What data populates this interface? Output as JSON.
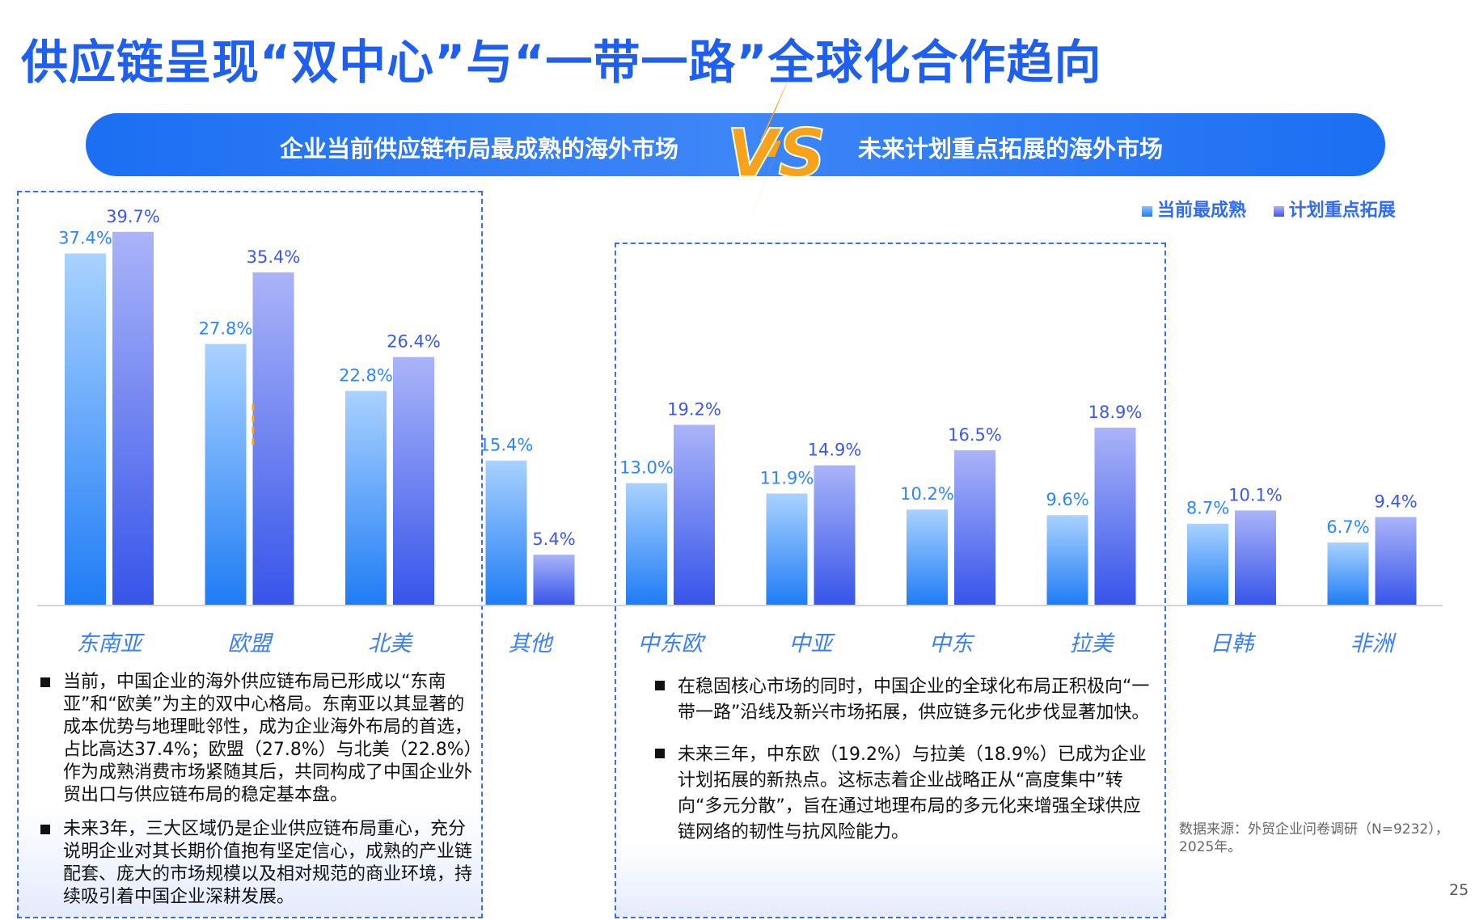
{
  "title": "供应链呈现“双中心”与“一带一路”全球化合作趋向",
  "banner": {
    "left_text": "企业当前供应链布局最成熟的海外市场",
    "vs_text": "VS",
    "right_text": "未来计划重点拓展的海外市场"
  },
  "colors": {
    "primary": "#1e5ff0",
    "current_bar": "#8cc4ff",
    "plan_bar": "#7f8ef2",
    "accent": "#f7a21b"
  },
  "chart_data": {
    "type": "bar",
    "categories": [
      "东南亚",
      "欧盟",
      "北美",
      "其他",
      "中东欧",
      "中亚",
      "中东",
      "拉美",
      "日韩",
      "非洲"
    ],
    "series": [
      {
        "name": "当前最成熟",
        "values": [
          37.4,
          27.8,
          22.8,
          15.4,
          13.0,
          11.9,
          10.2,
          9.6,
          8.7,
          6.7
        ],
        "labels": [
          "37.4%",
          "27.8%",
          "22.8%",
          "15.4%",
          "13.0%",
          "11.9%",
          "10.2%",
          "9.6%",
          "8.7%",
          "6.7%"
        ]
      },
      {
        "name": "计划重点拓展",
        "values": [
          39.7,
          35.4,
          26.4,
          5.4,
          19.2,
          14.9,
          16.5,
          18.9,
          10.1,
          9.4
        ],
        "labels": [
          "39.7%",
          "35.4%",
          "26.4%",
          "5.4%",
          "19.2%",
          "14.9%",
          "16.5%",
          "18.9%",
          "10.1%",
          "9.4%"
        ]
      }
    ],
    "ylim": [
      0,
      42
    ],
    "legend_position": "top-right",
    "grid": false
  },
  "notes_left": [
    "当前，中国企业的海外供应链布局已形成以“东南亚”和“欧美”为主的双中心格局。东南亚以其显著的成本优势与地理毗邻性，成为企业海外布局的首选，占比高达37.4%；欧盟（27.8%）与北美（22.8%）作为成熟消费市场紧随其后，共同构成了中国企业外贸出口与供应链布局的稳定基本盘。",
    "未来3年，三大区域仍是企业供应链布局重心，充分说明企业对其长期价值抱有坚定信心，成熟的产业链配套、庞大的市场规模以及相对规范的商业环境，持续吸引着中国企业深耕发展。"
  ],
  "notes_mid": [
    "在稳固核心市场的同时，中国企业的全球化布局正积极向“一带一路”沿线及新兴市场拓展，供应链多元化步伐显著加快。",
    "未来三年，中东欧（19.2%）与拉美（18.9%）已成为企业计划拓展的新热点。这标志着企业战略正从“高度集中”转向“多元分散”，旨在通过地理布局的多元化来增强全球供应链网络的韧性与抗风险能力。"
  ],
  "source": "数据来源：外贸企业问卷调研（N=9232），2025年。",
  "page_number": "25"
}
